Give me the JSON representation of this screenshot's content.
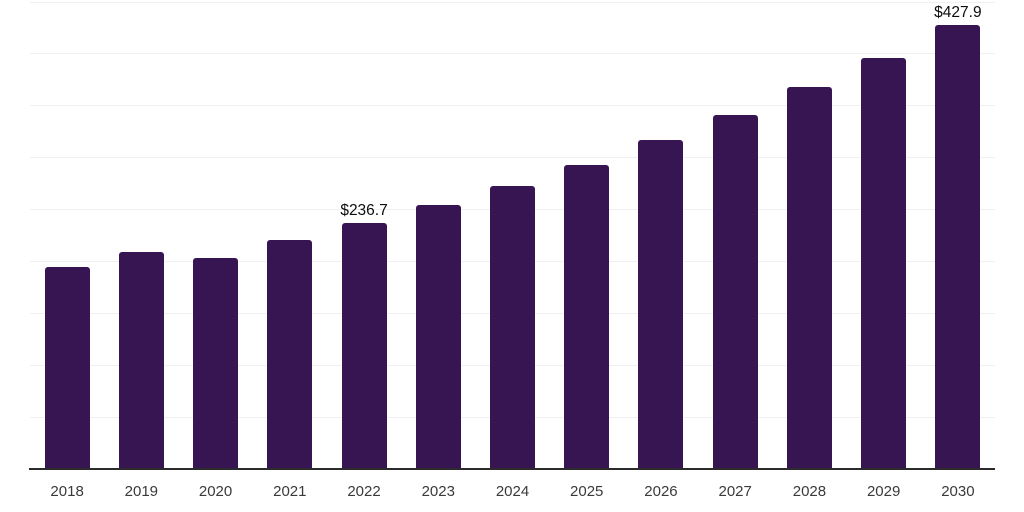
{
  "chart_data": {
    "type": "bar",
    "title": "",
    "xlabel": "",
    "ylabel": "",
    "categories": [
      "2018",
      "2019",
      "2020",
      "2021",
      "2022",
      "2023",
      "2024",
      "2025",
      "2026",
      "2027",
      "2028",
      "2029",
      "2030"
    ],
    "values": [
      194.5,
      208.6,
      203.6,
      220.9,
      236.7,
      254.5,
      272.8,
      292.3,
      316.3,
      340.4,
      367.3,
      395.8,
      427.9
    ],
    "value_labels": {
      "2022": "$236.7",
      "2030": "$427.9"
    },
    "ylim": [
      0,
      451.5
    ],
    "grid": true,
    "grid_step": 50,
    "legend": false,
    "bar_color": "#371553",
    "gridline_color": "#f0f0f2",
    "axis_line_color": "#2b2b2b",
    "value_label_color": "#0d0d0d",
    "tick_label_color": "#3a3a3a"
  }
}
